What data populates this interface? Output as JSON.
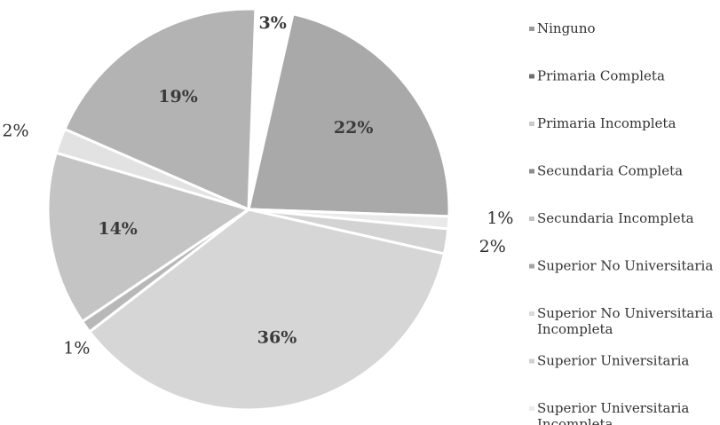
{
  "chart_data": {
    "type": "pie",
    "title": "",
    "legend_position": "right",
    "start_angle_deg": 2,
    "slices": [
      {
        "label": "Ninguno",
        "value": 3,
        "display": "3%",
        "color": "#ffffff",
        "exploded": true,
        "label_outside": false
      },
      {
        "label": "Primaria Completa",
        "value": 22,
        "display": "22%",
        "color": "#a9a9a9",
        "exploded": false,
        "label_outside": false
      },
      {
        "label": "Primaria Incompleta",
        "value": 1,
        "display": "1%",
        "color": "#e9e9e9",
        "exploded": false,
        "label_outside": true
      },
      {
        "label": "Secundaria Completa",
        "value": 2,
        "display": "2%",
        "color": "#d3d3d3",
        "exploded": false,
        "label_outside": true
      },
      {
        "label": "Secundaria Incompleta",
        "value": 36,
        "display": "36%",
        "color": "#d6d6d6",
        "exploded": false,
        "label_outside": false
      },
      {
        "label": "Superior No Universitaria",
        "value": 1,
        "display": "1%",
        "color": "#b8b8b8",
        "exploded": false,
        "label_outside": true
      },
      {
        "label": "Superior No Universitaria Incompleta",
        "value": 14,
        "display": "14%",
        "color": "#c4c4c4",
        "exploded": false,
        "label_outside": false
      },
      {
        "label": "Superior Universitaria",
        "value": 2,
        "display": "2%",
        "color": "#e2e2e2",
        "exploded": false,
        "label_outside": true
      },
      {
        "label": "Superior Universitaria Incompleta",
        "value": 19,
        "display": "19%",
        "color": "#b3b3b3",
        "exploded": false,
        "label_outside": false
      }
    ],
    "legend": [
      {
        "line1": "Ninguno",
        "line2": "",
        "color": "#9a9a9a"
      },
      {
        "line1": "Primaria Completa",
        "line2": "",
        "color": "#6f6f6f"
      },
      {
        "line1": "Primaria Incompleta",
        "line2": "",
        "color": "#c9c9c9"
      },
      {
        "line1": "Secundaria Completa",
        "line2": "",
        "color": "#8d8d8d"
      },
      {
        "line1": "Secundaria Incompleta",
        "line2": "",
        "color": "#c2c2c2"
      },
      {
        "line1": "Superior No Universitaria",
        "line2": "",
        "color": "#a4a4a4"
      },
      {
        "line1": "Superior No Universitaria",
        "line2": "Incompleta",
        "color": "#dadada"
      },
      {
        "line1": "Superior Universitaria",
        "line2": "",
        "color": "#d0d0d0"
      },
      {
        "line1": "Superior Universitaria",
        "line2": "Incompleta",
        "color": "#ececec"
      }
    ]
  }
}
